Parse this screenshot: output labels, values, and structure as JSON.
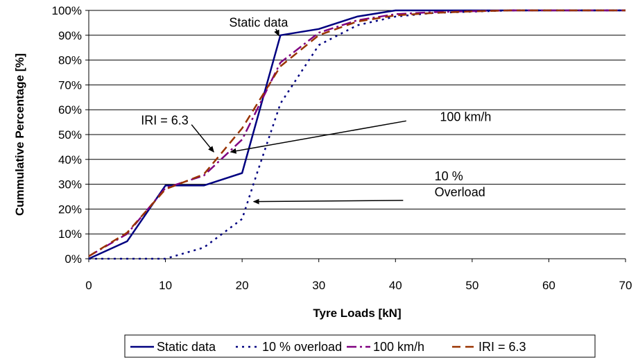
{
  "chart_data": {
    "type": "line",
    "xlabel": "Tyre Loads [kN]",
    "ylabel": "Cummulative Percentage [%]",
    "xlim": [
      0,
      70
    ],
    "ylim": [
      0,
      100
    ],
    "x_ticks": [
      "0",
      "10",
      "20",
      "30",
      "40",
      "50",
      "60",
      "70"
    ],
    "y_ticks": [
      "0%",
      "10%",
      "20%",
      "30%",
      "40%",
      "50%",
      "60%",
      "70%",
      "80%",
      "90%",
      "100%"
    ],
    "grid": "horizontal",
    "legend_position": "bottom",
    "series": [
      {
        "name": "Static data",
        "color": "#000080",
        "dash": "solid",
        "x": [
          0,
          5,
          10,
          15,
          20,
          25,
          30,
          35,
          40,
          45,
          50,
          55,
          60,
          65,
          70
        ],
        "y": [
          0,
          7,
          29.5,
          29.5,
          34.5,
          90,
          92.5,
          97.5,
          100,
          100,
          100,
          100,
          100,
          100,
          100
        ]
      },
      {
        "name": "10 % overload",
        "color": "#000080",
        "dash": "dotted",
        "x": [
          0,
          5,
          10,
          15,
          20,
          22,
          25,
          30,
          35,
          40,
          45,
          50,
          55,
          60,
          65,
          70
        ],
        "y": [
          0,
          0,
          0,
          4.5,
          16,
          35,
          62.5,
          86,
          94,
          97.5,
          99,
          99.5,
          100,
          100,
          100,
          100
        ]
      },
      {
        "name": "100 km/h",
        "color": "#800080",
        "dash": "dashdot",
        "x": [
          0,
          5,
          10,
          15,
          20,
          25,
          30,
          35,
          40,
          45,
          50,
          55,
          60,
          65,
          70
        ],
        "y": [
          1,
          10,
          28.5,
          33.5,
          48,
          79,
          91,
          96,
          98.5,
          99.3,
          99.7,
          100,
          100,
          100,
          100
        ]
      },
      {
        "name": "IRI = 6.3",
        "color": "#993300",
        "dash": "dash",
        "x": [
          0,
          5,
          10,
          15,
          20,
          25,
          30,
          35,
          40,
          45,
          50,
          55,
          60,
          65,
          70
        ],
        "y": [
          1,
          10.5,
          28,
          34,
          52.5,
          77.5,
          90,
          95.5,
          98,
          99,
          99.6,
          100,
          100,
          100,
          100
        ]
      }
    ],
    "annotations": [
      {
        "text": "Static data",
        "lines": [
          "Static data"
        ],
        "text_x": 18.3,
        "text_y": 93.5,
        "arrow_from": [
          24.4,
          92.5
        ],
        "arrow_to": [
          24.8,
          89.8
        ]
      },
      {
        "text": "IRI = 6.3",
        "lines": [
          "IRI = 6.3"
        ],
        "text_x": 6.8,
        "text_y": 54,
        "arrow_from": [
          13.4,
          54
        ],
        "arrow_to": [
          16.3,
          43
        ]
      },
      {
        "text": "100 km/h",
        "lines": [
          "100 km/h"
        ],
        "text_x": 45.8,
        "text_y": 55.5,
        "arrow_from": [
          41.4,
          55.5
        ],
        "arrow_to": [
          18.5,
          43
        ]
      },
      {
        "text": "10 % Overload",
        "lines": [
          "10 %",
          "Overload"
        ],
        "text_x": 45.1,
        "text_y": 31.5,
        "arrow_from": [
          41,
          23.5
        ],
        "arrow_to": [
          21.5,
          23
        ]
      }
    ]
  }
}
